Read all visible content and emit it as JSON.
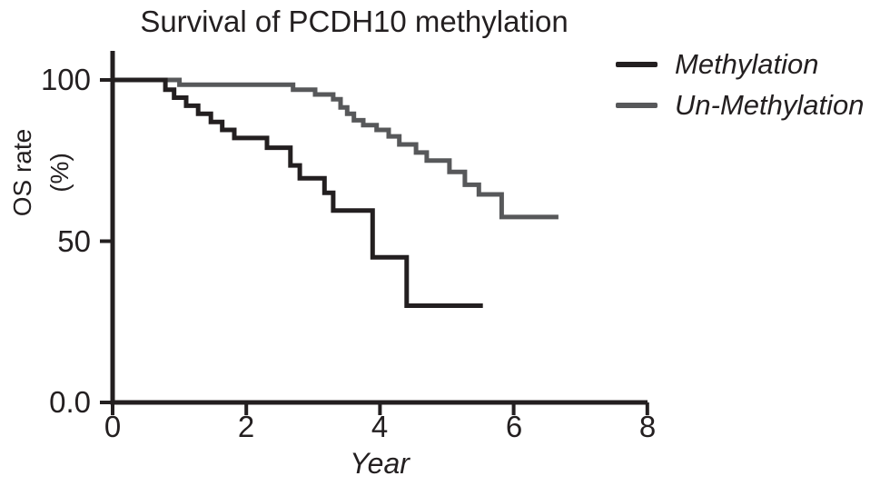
{
  "title": "Survival of PCDH10 methylation",
  "axes": {
    "y_title_line1": "OS rate",
    "y_title_line2": "(%)",
    "x_title": "Year",
    "y_tick_labels": [
      "100",
      "50",
      "0.0"
    ],
    "x_tick_labels": [
      "0",
      "2",
      "4",
      "6",
      "8"
    ]
  },
  "chart_data": {
    "type": "line",
    "subtype": "kaplan-meier-step-survival",
    "title": "Survival of PCDH10 methylation",
    "xlabel": "Year",
    "ylabel": "OS rate (%)",
    "xlim": [
      0,
      8
    ],
    "ylim": [
      0,
      110
    ],
    "x_ticks": [
      0,
      2,
      4,
      6,
      8
    ],
    "y_ticks": [
      0,
      50,
      100
    ],
    "grid": false,
    "legend_position": "top-right",
    "series": [
      {
        "name": "Methylation",
        "color": "#231f20",
        "points_format": "[year, os_rate_percent] step-down events",
        "points": [
          [
            0,
            100
          ],
          [
            0.79,
            97
          ],
          [
            0.92,
            94.5
          ],
          [
            1.1,
            92
          ],
          [
            1.28,
            89.5
          ],
          [
            1.47,
            87
          ],
          [
            1.64,
            84.5
          ],
          [
            1.82,
            82
          ],
          [
            2.31,
            79
          ],
          [
            2.66,
            73.5
          ],
          [
            2.8,
            69.5
          ],
          [
            3.17,
            65
          ],
          [
            3.3,
            59.5
          ],
          [
            3.89,
            45
          ],
          [
            4.4,
            30
          ],
          [
            5.54,
            30
          ]
        ]
      },
      {
        "name": "Un-Methylation",
        "color": "#57585a",
        "points_format": "[year, os_rate_percent] step-down events",
        "points": [
          [
            0,
            100
          ],
          [
            1.0,
            98.5
          ],
          [
            2.7,
            97
          ],
          [
            3.03,
            95.5
          ],
          [
            3.3,
            94
          ],
          [
            3.41,
            91.5
          ],
          [
            3.51,
            89.5
          ],
          [
            3.61,
            87.5
          ],
          [
            3.75,
            86
          ],
          [
            3.95,
            84.5
          ],
          [
            4.13,
            82.5
          ],
          [
            4.29,
            80
          ],
          [
            4.54,
            77.5
          ],
          [
            4.7,
            75
          ],
          [
            5.04,
            71.5
          ],
          [
            5.27,
            67.5
          ],
          [
            5.48,
            64.5
          ],
          [
            5.82,
            57.5
          ],
          [
            6.67,
            57.5
          ]
        ]
      }
    ]
  }
}
